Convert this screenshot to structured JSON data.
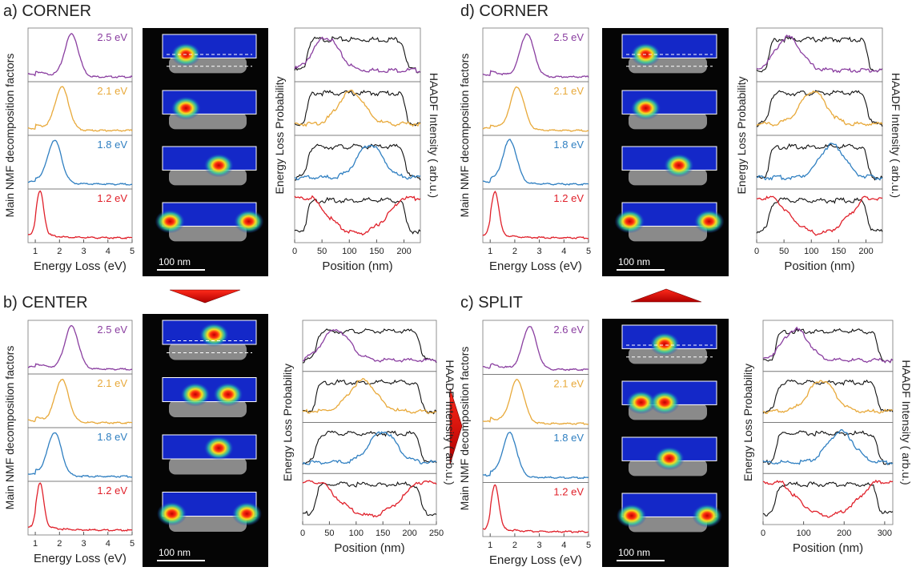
{
  "panels": [
    {
      "title": "a) CORNER",
      "spectra": {
        "ylabel": "Main NMF decomposition factors",
        "xlabel": "Energy Loss (eV)",
        "xlim": [
          0.7,
          5
        ],
        "xticks": [
          1,
          2,
          3,
          4,
          5
        ],
        "components": [
          {
            "label": "2.5 eV",
            "color": "#8a3ea0"
          },
          {
            "label": "2.1 eV",
            "color": "#e8a93a"
          },
          {
            "label": "1.8 eV",
            "color": "#2f7fc1"
          },
          {
            "label": "1.2 eV",
            "color": "#e0202a"
          }
        ]
      },
      "scale_bar": "100 nm",
      "profiles": {
        "ylabel": "Energy Loss Probability",
        "ylabel_right": "HAADF Intensity ( arb.u.)",
        "xlabel": "Position (nm)",
        "xlim": [
          0,
          230
        ],
        "xticks": [
          0,
          50,
          100,
          150,
          200
        ]
      }
    },
    {
      "title": "d) CORNER",
      "spectra": {
        "ylabel": "Main NMF decomposition factors",
        "xlabel": "Energy Loss (eV)",
        "xlim": [
          0.7,
          5
        ],
        "xticks": [
          1,
          2,
          3,
          4,
          5
        ],
        "components": [
          {
            "label": "2.5 eV",
            "color": "#8a3ea0"
          },
          {
            "label": "2.1 eV",
            "color": "#e8a93a"
          },
          {
            "label": "1.8 eV",
            "color": "#2f7fc1"
          },
          {
            "label": "1.2 eV",
            "color": "#e0202a"
          }
        ]
      },
      "scale_bar": "100 nm",
      "profiles": {
        "ylabel": "Energy Loss Probability",
        "ylabel_right": "HAADF Intensity ( arb.u.)",
        "xlabel": "Position (nm)",
        "xlim": [
          0,
          230
        ],
        "xticks": [
          0,
          50,
          100,
          150,
          200
        ]
      }
    },
    {
      "title": "b) CENTER",
      "spectra": {
        "ylabel": "Main NMF decomposition factors",
        "xlabel": "Energy Loss (eV)",
        "xlim": [
          0.7,
          5
        ],
        "xticks": [
          1,
          2,
          3,
          4,
          5
        ],
        "components": [
          {
            "label": "2.5 eV",
            "color": "#8a3ea0"
          },
          {
            "label": "2.1 eV",
            "color": "#e8a93a"
          },
          {
            "label": "1.8 eV",
            "color": "#2f7fc1"
          },
          {
            "label": "1.2 eV",
            "color": "#e0202a"
          }
        ]
      },
      "scale_bar": "100 nm",
      "profiles": {
        "ylabel": "Energy Loss Probability",
        "ylabel_right": "HAADF Intensity ( arb.u.)",
        "xlabel": "Position (nm)",
        "xlim": [
          0,
          250
        ],
        "xticks": [
          0,
          50,
          100,
          150,
          200,
          250
        ]
      }
    },
    {
      "title": "c) SPLIT",
      "spectra": {
        "ylabel": "Main NMF decomposition factors",
        "xlabel": "Energy Loss (eV)",
        "xlim": [
          0.7,
          5
        ],
        "xticks": [
          1,
          2,
          3,
          4,
          5
        ],
        "components": [
          {
            "label": "2.6 eV",
            "color": "#8a3ea0"
          },
          {
            "label": "2.1 eV",
            "color": "#e8a93a"
          },
          {
            "label": "1.8 eV",
            "color": "#2f7fc1"
          },
          {
            "label": "1.2 eV",
            "color": "#e0202a"
          }
        ]
      },
      "scale_bar": "100 nm",
      "profiles": {
        "ylabel": "Energy Loss Probability",
        "ylabel_right": "HAADF Intensity ( arb.u.)",
        "xlabel": "Position (nm)",
        "xlim": [
          0,
          320
        ],
        "xticks": [
          0,
          100,
          200,
          300
        ]
      }
    }
  ]
}
